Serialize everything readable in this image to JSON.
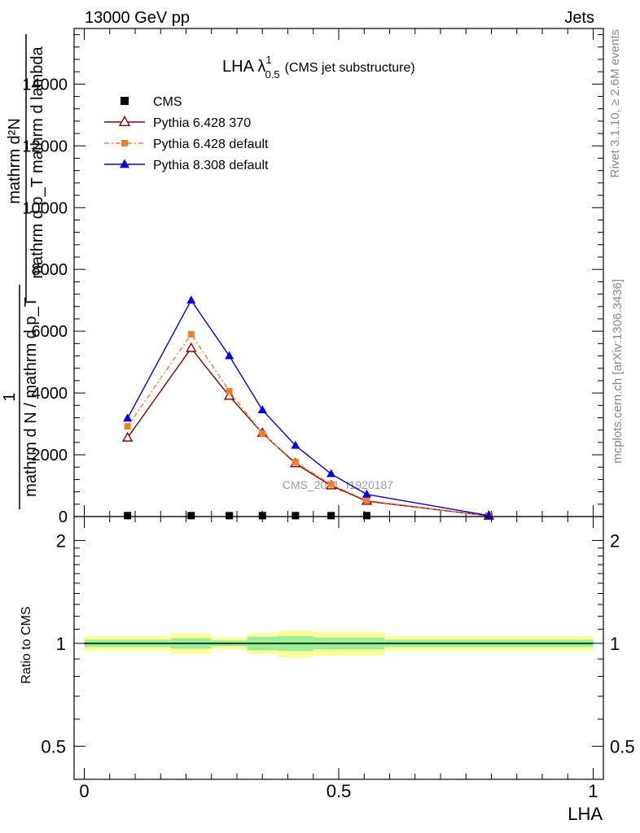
{
  "header": {
    "left": "13000 GeV pp",
    "right": "Jets"
  },
  "side_text": {
    "rivet": "Rivet 3.1.10, ≥ 2.6M events",
    "mcplots": "mcplots.cern.ch [arXiv:1306.3436]"
  },
  "watermark": "CMS_2021_I1920187",
  "chart_data": [
    {
      "type": "line",
      "title_main": "LHA λ",
      "title_sup": "1",
      "title_sub": "0.5",
      "title_note": "(CMS jet substructure)",
      "ylabel_line1": "mathrm d²N",
      "ylabel_line2": "mathrm d p_T mathrm d lambda",
      "ylabel_line3": "1",
      "ylabel_line4": "mathrm d N / mathrm d p_T",
      "xlim": [
        -0.02,
        1.02
      ],
      "ylim": [
        0,
        15800
      ],
      "yticks": [
        0,
        2000,
        4000,
        6000,
        8000,
        10000,
        12000,
        14000
      ],
      "ytick_labels": [
        "0",
        "2000",
        "4000",
        "6000",
        "8000",
        "10000",
        "12000",
        "14000"
      ],
      "legend_position": "top-left",
      "series": [
        {
          "name": "CMS",
          "color": "#000000",
          "marker": "square",
          "x": [
            0.085,
            0.21,
            0.285,
            0.35,
            0.415,
            0.485,
            0.555,
            0.795
          ],
          "y": [
            30,
            30,
            30,
            30,
            30,
            30,
            30,
            10
          ]
        },
        {
          "name": "Pythia 6.428 370",
          "color": "#8b0000",
          "marker": "triangle-open",
          "x": [
            0.085,
            0.21,
            0.285,
            0.35,
            0.415,
            0.485,
            0.555,
            0.795
          ],
          "y": [
            2550,
            5450,
            3900,
            2700,
            1720,
            1000,
            500,
            20
          ]
        },
        {
          "name": "Pythia 6.428 default",
          "color": "#f08030",
          "marker": "square",
          "dash": true,
          "x": [
            0.085,
            0.21,
            0.285,
            0.35,
            0.415,
            0.485,
            0.555,
            0.795
          ],
          "y": [
            2920,
            5900,
            4060,
            2680,
            1760,
            1040,
            520,
            20
          ]
        },
        {
          "name": "Pythia 8.308 default",
          "color": "#0000e0",
          "marker": "triangle",
          "x": [
            0.085,
            0.21,
            0.285,
            0.35,
            0.415,
            0.485,
            0.555,
            0.795
          ],
          "y": [
            3180,
            7000,
            5200,
            3450,
            2300,
            1380,
            720,
            30
          ]
        }
      ]
    },
    {
      "type": "line",
      "ylabel": "Ratio to CMS",
      "xlabel": "LHA",
      "xlim": [
        -0.02,
        1.02
      ],
      "ylim": [
        0.4,
        2.35
      ],
      "log_y": true,
      "yticks": [
        0.5,
        1,
        2
      ],
      "ytick_labels": [
        "0.5",
        "1",
        "2"
      ],
      "xticks": [
        0,
        0.5,
        1
      ],
      "xtick_labels": [
        "0",
        "0.5",
        "1"
      ],
      "reference": 1,
      "bands": {
        "bin_edges": [
          0,
          0.17,
          0.25,
          0.32,
          0.38,
          0.45,
          0.59,
          1.0
        ],
        "stat_sys": [
          0.05,
          0.07,
          0.04,
          0.07,
          0.09,
          0.08,
          0.05
        ],
        "stat": [
          0.025,
          0.035,
          0.02,
          0.045,
          0.05,
          0.04,
          0.025
        ]
      }
    }
  ]
}
